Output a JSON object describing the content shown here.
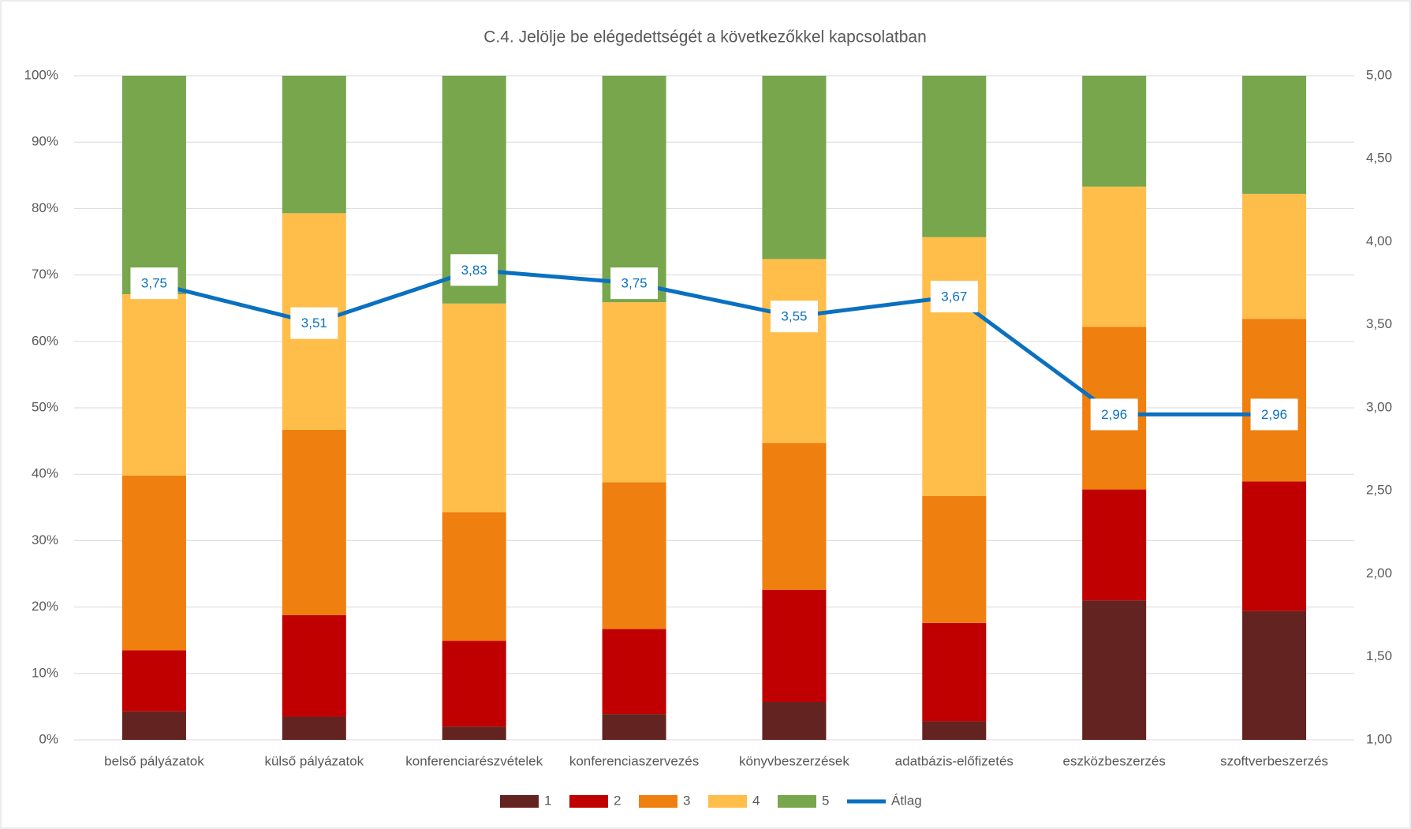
{
  "chart_data": {
    "type": "bar",
    "stacked": true,
    "title": "C.4. Jelölje be elégedettségét a következőkkel kapcsolatban",
    "categories": [
      "belső pályázatok",
      "külső pályázatok",
      "konferenciarészvételek",
      "konferenciaszervezés",
      "könyvbeszerzések",
      "adatbázis-előfizetés",
      "eszközbeszerzés",
      "szoftverbeszerzés"
    ],
    "series": [
      {
        "name": "1",
        "color": "#622321",
        "values": [
          4.3,
          3.5,
          2.0,
          3.9,
          5.7,
          2.8,
          21.0,
          19.4
        ]
      },
      {
        "name": "2",
        "color": "#c00000",
        "values": [
          9.2,
          15.3,
          12.9,
          12.8,
          16.9,
          14.8,
          16.7,
          19.5
        ]
      },
      {
        "name": "3",
        "color": "#ef7f0e",
        "values": [
          26.3,
          27.9,
          19.4,
          22.1,
          22.1,
          19.1,
          24.5,
          24.5
        ]
      },
      {
        "name": "4",
        "color": "#ffbe4a",
        "values": [
          27.3,
          32.6,
          31.4,
          27.1,
          27.7,
          39.0,
          21.1,
          18.8
        ]
      },
      {
        "name": "5",
        "color": "#77a64d",
        "values": [
          32.9,
          20.7,
          34.3,
          34.1,
          27.6,
          24.3,
          16.7,
          17.8
        ]
      },
      {
        "name": "Átlag",
        "type": "line",
        "axis": "y2",
        "color": "#0a70c0",
        "values": [
          3.75,
          3.51,
          3.83,
          3.75,
          3.55,
          3.67,
          2.96,
          2.96
        ],
        "value_labels": [
          "3,75",
          "3,51",
          "3,83",
          "3,75",
          "3,55",
          "3,67",
          "2,96",
          "2,96"
        ]
      }
    ],
    "ylim": [
      0,
      100
    ],
    "yticks": [
      {
        "value": 0,
        "label": "0%"
      },
      {
        "value": 10,
        "label": "10%"
      },
      {
        "value": 20,
        "label": "20%"
      },
      {
        "value": 30,
        "label": "30%"
      },
      {
        "value": 40,
        "label": "40%"
      },
      {
        "value": 50,
        "label": "50%"
      },
      {
        "value": 60,
        "label": "60%"
      },
      {
        "value": 70,
        "label": "70%"
      },
      {
        "value": 80,
        "label": "80%"
      },
      {
        "value": 90,
        "label": "90%"
      },
      {
        "value": 100,
        "label": "100%"
      }
    ],
    "y2lim": [
      1,
      5
    ],
    "y2ticks": [
      {
        "value": 1,
        "label": "1,00"
      },
      {
        "value": 1.5,
        "label": "1,50"
      },
      {
        "value": 2,
        "label": "2,00"
      },
      {
        "value": 2.5,
        "label": "2,50"
      },
      {
        "value": 3,
        "label": "3,00"
      },
      {
        "value": 3.5,
        "label": "3,50"
      },
      {
        "value": 4,
        "label": "4,00"
      },
      {
        "value": 4.5,
        "label": "4,50"
      },
      {
        "value": 5,
        "label": "5,00"
      }
    ],
    "grid": true,
    "legend": "bottom"
  }
}
